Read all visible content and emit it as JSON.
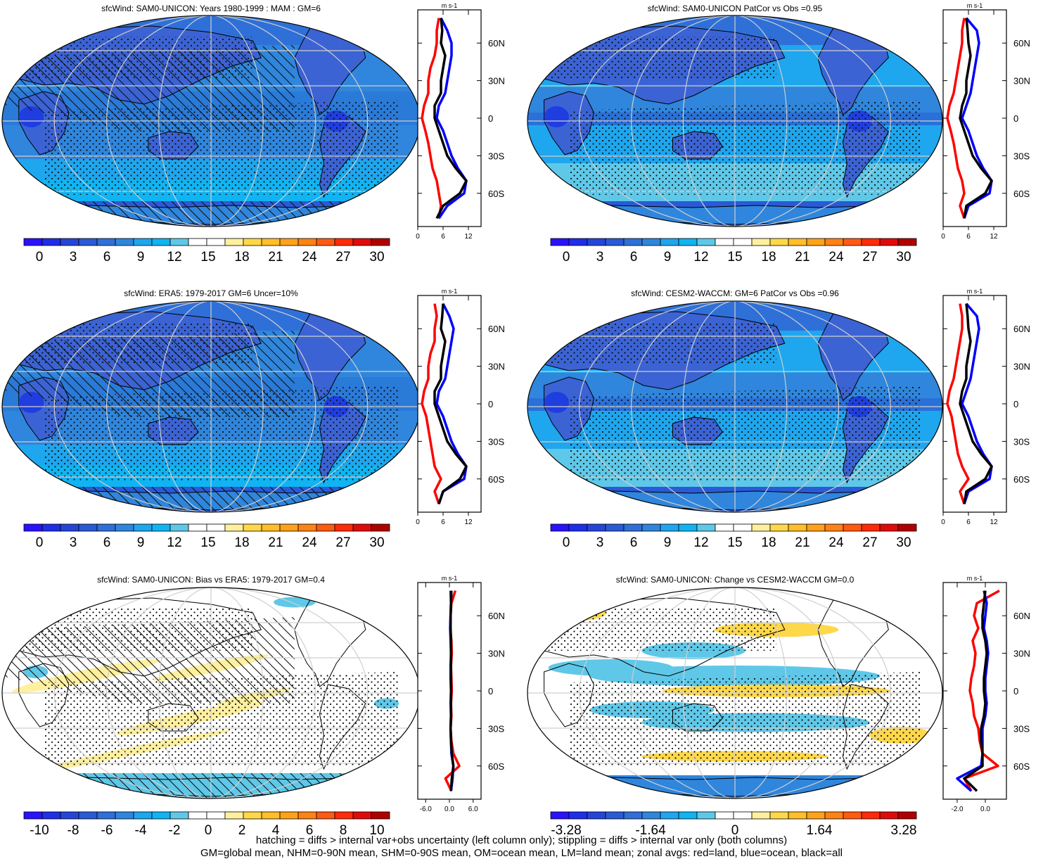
{
  "footer": {
    "line1": "hatching = diffs > internal var+obs uncertainty (left column only); stippling = diffs > internal var only (both columns)",
    "line2": "GM=global mean, NHM=0-90N mean, SHM=0-90S mean, OM=ocean mean, LM=land mean; zonal avgs: red=land, blue=ocean, black=all"
  },
  "colors": {
    "ocean_blue": "#2f8de0",
    "land_blue": "#3b63d4",
    "deep_blue": "#1f3ee0",
    "zonal_land": "#ff0000",
    "zonal_ocean": "#0000ff",
    "zonal_all": "#000000"
  },
  "colorbars": {
    "abs": {
      "colors": [
        "#2a12ff",
        "#1f2ee8",
        "#2446d8",
        "#2a5ad6",
        "#2f70d8",
        "#2f86dc",
        "#1ea6ee",
        "#10b4f2",
        "#5fc8e8",
        "#ffffff",
        "#ffffff",
        "#fff0a0",
        "#ffd84a",
        "#ffbe2a",
        "#ffa21a",
        "#ff8214",
        "#ff5a12",
        "#ff2a0a",
        "#e00a0a",
        "#b00000"
      ],
      "labels": [
        "0",
        "3",
        "6",
        "9",
        "12",
        "15",
        "18",
        "21",
        "24",
        "27",
        "30"
      ]
    },
    "bias": {
      "colors": [
        "#2a12ff",
        "#1f2ee8",
        "#2446d8",
        "#2a5ad6",
        "#2f70d8",
        "#2f86dc",
        "#1ea6ee",
        "#10b4f2",
        "#5fc8e8",
        "#ffffff",
        "#ffffff",
        "#fff0a0",
        "#ffd84a",
        "#ffbe2a",
        "#ffa21a",
        "#ff8214",
        "#ff5a12",
        "#ff2a0a",
        "#e00a0a",
        "#b00000"
      ],
      "labels": [
        "-10",
        "-8",
        "-6",
        "-4",
        "-2",
        "0",
        "2",
        "4",
        "6",
        "8",
        "10"
      ]
    },
    "change": {
      "colors": [
        "#2a12ff",
        "#1f2ee8",
        "#2446d8",
        "#2a5ad6",
        "#2f70d8",
        "#2f86dc",
        "#1ea6ee",
        "#10b4f2",
        "#5fc8e8",
        "#ffffff",
        "#ffffff",
        "#fff0a0",
        "#ffd84a",
        "#ffbe2a",
        "#ffa21a",
        "#ff8214",
        "#ff5a12",
        "#ff2a0a",
        "#e00a0a",
        "#b00000"
      ],
      "labels": [
        "-3.28",
        "-1.64",
        "0",
        "1.64",
        "3.28"
      ]
    }
  },
  "chart_data": [
    {
      "type": "heatmap",
      "title": "sfcWind: SAM0-UNICON: Years 1980-1999 : MAM : GM=6",
      "style": "abs",
      "hatching": true,
      "stippling": true,
      "colorbar": "abs",
      "zonal": {
        "unit": "m s-1",
        "xticks": [
          "0",
          "6",
          "12"
        ],
        "xlim": [
          0,
          15
        ],
        "ylabels": [
          "60N",
          "30N",
          "0",
          "30S",
          "60S"
        ],
        "lat": [
          80,
          70,
          60,
          50,
          40,
          30,
          20,
          10,
          0,
          -10,
          -20,
          -30,
          -40,
          -50,
          -60,
          -70,
          -80
        ],
        "land": [
          5,
          4.5,
          4.5,
          4,
          3,
          2.5,
          2.5,
          1.5,
          1,
          1.8,
          2.5,
          3,
          3.5,
          4.5,
          5,
          5.5,
          5
        ],
        "ocean": [
          5.5,
          7,
          8,
          8,
          7.5,
          7,
          6.5,
          5,
          4.5,
          6,
          7,
          8,
          9.5,
          11.5,
          11,
          7,
          5
        ],
        "all": [
          5.5,
          5.8,
          5.5,
          6.5,
          6,
          5.5,
          5.5,
          4,
          4,
          5,
          6,
          7,
          9,
          11.5,
          10,
          6,
          4.5
        ]
      }
    },
    {
      "type": "heatmap",
      "title": "sfcWind: SAM0-UNICON PatCor vs Obs =0.95",
      "style": "abs2",
      "hatching": false,
      "stippling": true,
      "colorbar": "abs",
      "zonal": {
        "unit": "m s-1",
        "xticks": [
          "0",
          "6",
          "12"
        ],
        "xlim": [
          0,
          15
        ],
        "ylabels": [
          "60N",
          "30N",
          "0",
          "30S",
          "60S"
        ],
        "lat": [
          80,
          70,
          60,
          50,
          40,
          30,
          20,
          10,
          0,
          -10,
          -20,
          -30,
          -40,
          -50,
          -60,
          -70,
          -80
        ],
        "land": [
          5,
          4.5,
          4.5,
          4,
          3.5,
          3,
          2.5,
          1.5,
          1,
          1.8,
          2.5,
          3,
          3.5,
          4.5,
          5,
          4,
          5
        ],
        "ocean": [
          5.5,
          8,
          8.5,
          8,
          7.5,
          7,
          6.5,
          5.5,
          4.5,
          6,
          7,
          8,
          9.5,
          11.5,
          11,
          6,
          5
        ],
        "all": [
          5.5,
          5.8,
          6,
          6.5,
          6,
          5.5,
          5.5,
          4.5,
          4,
          5,
          6,
          7,
          9,
          11.5,
          10,
          5.5,
          5
        ]
      }
    },
    {
      "type": "heatmap",
      "title": "sfcWind: ERA5: 1979-2017 GM=6 Uncer=10%",
      "style": "abs",
      "hatching": true,
      "stippling": true,
      "colorbar": "abs",
      "zonal": {
        "unit": "m s-1",
        "xticks": [
          "0",
          "6",
          "12"
        ],
        "xlim": [
          0,
          15
        ],
        "ylabels": [
          "60N",
          "30N",
          "0",
          "30S",
          "60S"
        ],
        "lat": [
          80,
          70,
          60,
          50,
          40,
          30,
          20,
          10,
          0,
          -10,
          -20,
          -30,
          -40,
          -50,
          -60,
          -70,
          -80
        ],
        "land": [
          4,
          4.5,
          4,
          4,
          3,
          2.5,
          2.5,
          1.5,
          1,
          2,
          2.5,
          3,
          3.5,
          4,
          5.5,
          4,
          5
        ],
        "ocean": [
          6,
          7.5,
          8.5,
          8,
          7.5,
          7,
          6.5,
          5,
          4.5,
          6,
          7,
          8,
          9.5,
          11.5,
          11,
          6,
          5
        ],
        "all": [
          6,
          5.8,
          5.5,
          6.5,
          6,
          5.5,
          5.5,
          4,
          4,
          5,
          6,
          7,
          9,
          11.5,
          10,
          6,
          5
        ]
      }
    },
    {
      "type": "heatmap",
      "title": "sfcWind: CESM2-WACCM: GM=6 PatCor vs Obs =0.96",
      "style": "abs2",
      "hatching": false,
      "stippling": true,
      "colorbar": "abs",
      "zonal": {
        "unit": "m s-1",
        "xticks": [
          "0",
          "6",
          "12"
        ],
        "xlim": [
          0,
          15
        ],
        "ylabels": [
          "60N",
          "30N",
          "0",
          "30S",
          "60S"
        ],
        "lat": [
          80,
          70,
          60,
          50,
          40,
          30,
          20,
          10,
          0,
          -10,
          -20,
          -30,
          -40,
          -50,
          -60,
          -70,
          -80
        ],
        "land": [
          4,
          4.5,
          4.5,
          4,
          3.5,
          3,
          2.5,
          1.5,
          1,
          2,
          2.5,
          3,
          3.5,
          4.5,
          6,
          4,
          5
        ],
        "ocean": [
          5.5,
          8,
          8.5,
          8,
          7.5,
          7,
          6.5,
          5.5,
          4.5,
          6,
          7,
          8,
          9.5,
          11.5,
          11,
          6,
          5
        ],
        "all": [
          5.5,
          5.8,
          6,
          6.5,
          6,
          5.5,
          5.5,
          4.5,
          4,
          5,
          6,
          7,
          9,
          11.5,
          10,
          5.5,
          5
        ]
      }
    },
    {
      "type": "heatmap",
      "title": "sfcWind: SAM0-UNICON: Bias vs ERA5: 1979-2017 GM=0.4",
      "style": "bias",
      "hatching": true,
      "stippling": true,
      "colorbar": "bias",
      "zonal": {
        "unit": "m s-1",
        "xticks": [
          "-6.0",
          "0.0",
          "6.0"
        ],
        "xlim": [
          -8,
          8
        ],
        "ylabels": [
          "60N",
          "30N",
          "0",
          "30S",
          "60S"
        ],
        "lat": [
          80,
          70,
          60,
          50,
          40,
          30,
          20,
          10,
          0,
          -10,
          -20,
          -30,
          -40,
          -50,
          -60,
          -70,
          -80
        ],
        "land": [
          1.5,
          0.5,
          0.3,
          0.2,
          0.5,
          0.6,
          0.4,
          0.5,
          0.6,
          0.4,
          0.5,
          0.3,
          0.5,
          1,
          2.5,
          -1,
          0.5
        ],
        "ocean": [
          0.3,
          0.4,
          0.3,
          0.2,
          0.3,
          0.4,
          0.3,
          0.3,
          0.4,
          0.3,
          0.4,
          0.3,
          0.4,
          0.5,
          1,
          0.8,
          0.4
        ],
        "all": [
          0.5,
          0.4,
          0.3,
          0.3,
          0.4,
          0.4,
          0.4,
          0.4,
          0.4,
          0.4,
          0.4,
          0.3,
          0.4,
          0.6,
          1,
          0.6,
          0.4
        ]
      }
    },
    {
      "type": "heatmap",
      "title": "sfcWind: SAM0-UNICON: Change vs CESM2-WACCM GM=0.0",
      "style": "change",
      "hatching": false,
      "stippling": true,
      "colorbar": "change",
      "zonal": {
        "unit": "m s-1",
        "xticks": [
          "-2.0",
          "0.0"
        ],
        "xlim": [
          -3,
          1.5
        ],
        "ylabels": [
          "60N",
          "30N",
          "0",
          "30S",
          "60S"
        ],
        "lat": [
          80,
          70,
          60,
          50,
          40,
          30,
          20,
          10,
          0,
          -10,
          -20,
          -30,
          -40,
          -50,
          -60,
          -70,
          -80
        ],
        "land": [
          1,
          -0.6,
          -0.8,
          -0.5,
          -0.9,
          -0.7,
          -0.8,
          -1,
          -1.1,
          -0.9,
          -0.8,
          -0.5,
          -0.4,
          -0.2,
          0.9,
          -1.5,
          -1
        ],
        "ocean": [
          -0.1,
          0.1,
          0,
          -0.1,
          0.1,
          0.2,
          0.1,
          0,
          0,
          0.1,
          0,
          -0.2,
          -0.2,
          -0.2,
          -0.3,
          -2,
          -1
        ],
        "all": [
          0,
          -0.1,
          -0.2,
          -0.2,
          0,
          0.1,
          0,
          -0.1,
          -0.1,
          0,
          -0.1,
          -0.3,
          -0.3,
          -0.2,
          -0.2,
          -1.5,
          -0.6
        ]
      }
    }
  ]
}
